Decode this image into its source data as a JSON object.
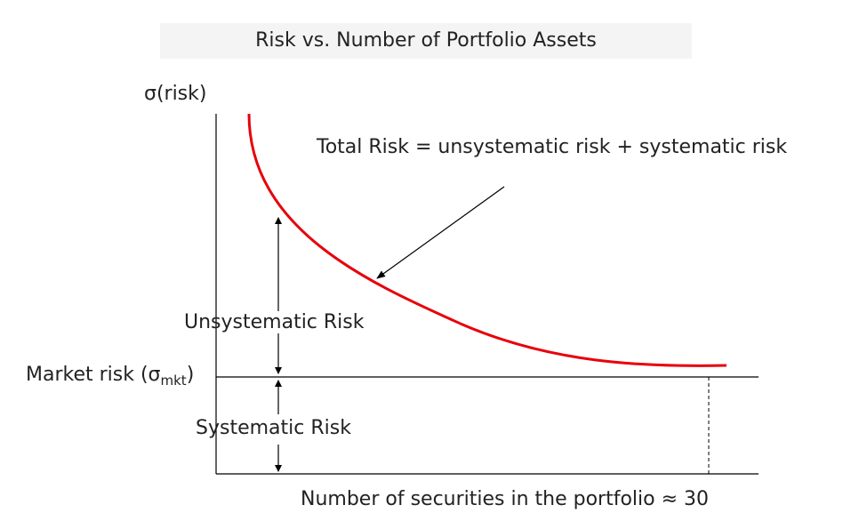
{
  "title": "Risk vs. Number of Portfolio Assets",
  "y_axis_label": "σ(risk)",
  "x_axis_label": "Number of securities in the portfolio ≈ 30",
  "total_risk_annotation": "Total Risk = unsystematic risk + systematic risk",
  "unsystematic_label": "Unsystematic Risk",
  "systematic_label": "Systematic Risk",
  "market_risk": {
    "prefix": "Market risk (σ",
    "subscript": "mkt",
    "suffix": ")"
  },
  "colors": {
    "curve": "#e8000b",
    "axes": "#000000",
    "text": "#222222",
    "title_background": "#f4f4f4"
  }
}
